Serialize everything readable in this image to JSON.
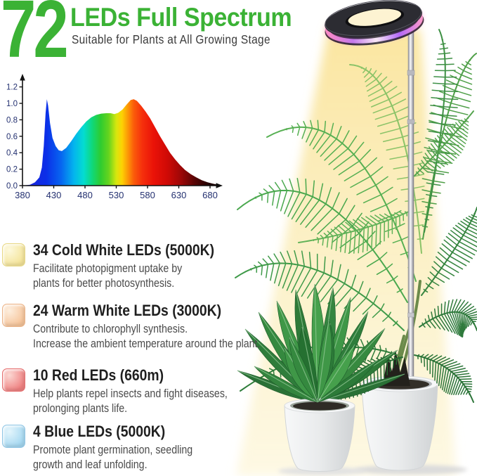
{
  "theme": {
    "accent_green": "#3bb235",
    "title_color": "#1f1f1f",
    "description_color": "#4b4b4b",
    "axis_label_color": "#233070",
    "beam_color": "#fbe9ac",
    "pot_color": "#e8eaec"
  },
  "header": {
    "number": "72",
    "title": "LEDs Full Spectrum",
    "subtitle": "Suitable for Plants at All Growing Stage"
  },
  "chart_data": {
    "type": "area",
    "title": "",
    "xlabel": "",
    "ylabel": "",
    "x_ticks": [
      380,
      430,
      480,
      530,
      580,
      630,
      680
    ],
    "y_ticks": [
      0.0,
      0.2,
      0.4,
      0.6,
      0.8,
      1.0,
      1.2
    ],
    "xlim": [
      380,
      695
    ],
    "ylim": [
      0,
      1.3
    ],
    "grid": false,
    "legend": false,
    "tick_color": "#233070",
    "points": [
      [
        380,
        0.0
      ],
      [
        392,
        0.01
      ],
      [
        400,
        0.04
      ],
      [
        407,
        0.1
      ],
      [
        411,
        0.22
      ],
      [
        414,
        0.48
      ],
      [
        417,
        0.88
      ],
      [
        419,
        1.05
      ],
      [
        421,
        0.97
      ],
      [
        424,
        0.76
      ],
      [
        428,
        0.58
      ],
      [
        433,
        0.48
      ],
      [
        438,
        0.43
      ],
      [
        443,
        0.42
      ],
      [
        450,
        0.46
      ],
      [
        458,
        0.54
      ],
      [
        466,
        0.63
      ],
      [
        474,
        0.71
      ],
      [
        482,
        0.78
      ],
      [
        490,
        0.83
      ],
      [
        498,
        0.86
      ],
      [
        506,
        0.875
      ],
      [
        514,
        0.88
      ],
      [
        521,
        0.88
      ],
      [
        527,
        0.87
      ],
      [
        533,
        0.885
      ],
      [
        540,
        0.925
      ],
      [
        547,
        0.99
      ],
      [
        553,
        1.04
      ],
      [
        558,
        1.05
      ],
      [
        563,
        1.03
      ],
      [
        570,
        0.97
      ],
      [
        577,
        0.9
      ],
      [
        584,
        0.82
      ],
      [
        592,
        0.71
      ],
      [
        600,
        0.6
      ],
      [
        608,
        0.5
      ],
      [
        616,
        0.4
      ],
      [
        624,
        0.32
      ],
      [
        632,
        0.25
      ],
      [
        640,
        0.19
      ],
      [
        649,
        0.14
      ],
      [
        658,
        0.1
      ],
      [
        667,
        0.065
      ],
      [
        676,
        0.04
      ],
      [
        684,
        0.025
      ],
      [
        690,
        0.015
      ]
    ],
    "gradient_stops": [
      [
        380,
        "#2121d8"
      ],
      [
        418,
        "#0b2fe8"
      ],
      [
        442,
        "#0766f0"
      ],
      [
        462,
        "#04b4ee"
      ],
      [
        478,
        "#04dcd0"
      ],
      [
        492,
        "#10d878"
      ],
      [
        505,
        "#2ecc30"
      ],
      [
        518,
        "#66d41e"
      ],
      [
        530,
        "#d6e70e"
      ],
      [
        539,
        "#fdd303"
      ],
      [
        548,
        "#fc9b06"
      ],
      [
        558,
        "#fb5c0a"
      ],
      [
        572,
        "#f52f0c"
      ],
      [
        590,
        "#ea1208"
      ],
      [
        612,
        "#cf0a06"
      ],
      [
        634,
        "#9c0707"
      ],
      [
        656,
        "#560404"
      ],
      [
        678,
        "#210101"
      ],
      [
        690,
        "#170101"
      ]
    ]
  },
  "features": [
    {
      "icon": "led-chip-swatch-cold-white",
      "title": "34 Cold White LEDs (5000K)",
      "lines": [
        "Facilitate photopigment uptake by",
        "plants for better photosynthesis."
      ],
      "swatch": {
        "light": "#fdf9dd",
        "base": "#f4e49a",
        "border": "#e8d884"
      }
    },
    {
      "icon": "led-chip-swatch-warm-white",
      "title": "24 Warm White LEDs (3000K)",
      "lines": [
        "Contribute to chlorophyll synthesis.",
        "Increase the ambient temperature around the plant."
      ],
      "swatch": {
        "light": "#fdeede",
        "base": "#f6c59b",
        "border": "#ecb386"
      }
    },
    {
      "icon": "led-chip-swatch-red",
      "title": "10 Red LEDs (660m)",
      "lines": [
        "Help plants repel insects and fight diseases,",
        "prolonging plants life."
      ],
      "swatch": {
        "light": "#fbd8d3",
        "base": "#ef8181",
        "border": "#e56d6d"
      }
    },
    {
      "icon": "led-chip-swatch-blue",
      "title": "4 Blue LEDs (5000K)",
      "lines": [
        "Promote plant germination, seedling",
        "growth and leaf unfolding."
      ],
      "swatch": {
        "light": "#e4f5fc",
        "base": "#a5d8f1",
        "border": "#8ec5e5"
      }
    }
  ]
}
